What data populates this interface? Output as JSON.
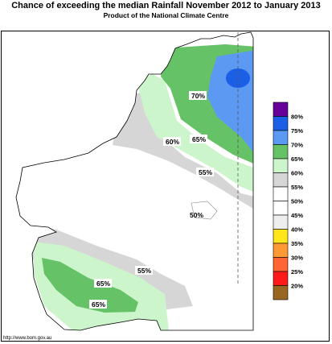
{
  "title": "Chance of exceeding the median Rainfall November 2012 to January 2013",
  "subtitle": "Product of the National Climate Centre",
  "credit": "http://www.bom.gov.au",
  "contour_labels": [
    "70%",
    "60%",
    "65%",
    "55%",
    "50%",
    "55%",
    "65%",
    "65%"
  ],
  "legend": [
    {
      "label": "80%",
      "color": "#660099"
    },
    {
      "label": "75%",
      "color": "#1a5fe6"
    },
    {
      "label": "70%",
      "color": "#5c99f2"
    },
    {
      "label": "65%",
      "color": "#66c266"
    },
    {
      "label": "60%",
      "color": "#ccf5cc"
    },
    {
      "label": "55%",
      "color": "#d6d6d6"
    },
    {
      "label": "50%",
      "color": "#ffffff"
    },
    {
      "label": "45%",
      "color": "#ffffff"
    },
    {
      "label": "40%",
      "color": "#eeeeee"
    },
    {
      "label": "35%",
      "color": "#ffe61a"
    },
    {
      "label": "30%",
      "color": "#ff9933"
    },
    {
      "label": "25%",
      "color": "#ff6633"
    },
    {
      "label": "20%",
      "color": "#ff1a1a"
    },
    {
      "label": "",
      "color": "#996622"
    }
  ]
}
